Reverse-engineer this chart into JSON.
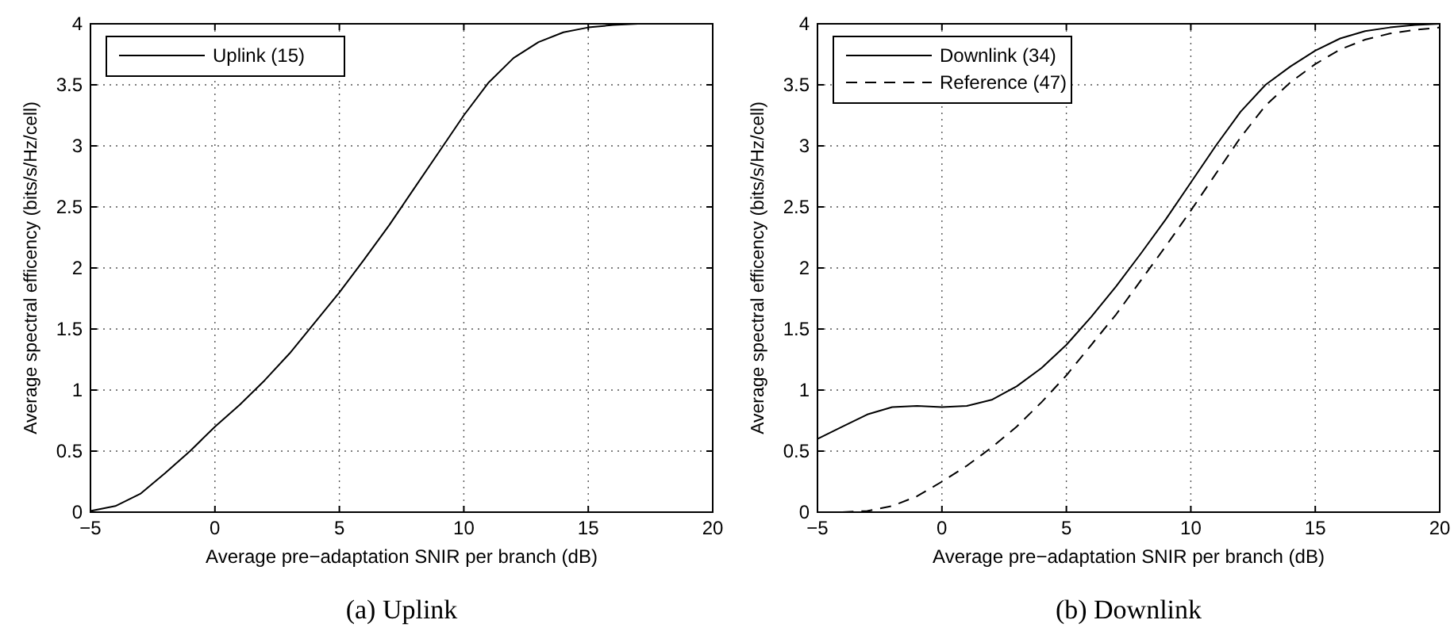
{
  "chart_data": [
    {
      "type": "line",
      "title": "(a) Uplink",
      "xlabel": "Average pre−adaptation SNIR per branch (dB)",
      "ylabel": "Average spectral efficency (bits/s/Hz/cell)",
      "x": [
        -5,
        -4,
        -3,
        -2,
        -1,
        0,
        1,
        2,
        3,
        4,
        5,
        6,
        7,
        8,
        9,
        10,
        11,
        12,
        13,
        14,
        15,
        16,
        17,
        18,
        19,
        20
      ],
      "series": [
        {
          "name": "Uplink (15)",
          "color": "#000000",
          "line_style": "solid",
          "values": [
            0.01,
            0.05,
            0.15,
            0.32,
            0.5,
            0.7,
            0.88,
            1.08,
            1.3,
            1.55,
            1.8,
            2.07,
            2.35,
            2.65,
            2.95,
            3.25,
            3.52,
            3.72,
            3.85,
            3.93,
            3.97,
            3.99,
            4.0,
            4.0,
            4.0,
            4.0
          ]
        }
      ],
      "xlim": [
        -5,
        20
      ],
      "xticks": [
        {
          "value": -5,
          "label": "−5"
        },
        0,
        5,
        10,
        15,
        20
      ],
      "ylim": [
        0,
        4
      ],
      "yticks": [
        0,
        0.5,
        1,
        1.5,
        2,
        2.5,
        3,
        3.5,
        4
      ],
      "grid": true,
      "legend": "top left"
    },
    {
      "type": "line",
      "title": "(b) Downlink",
      "xlabel": "Average pre−adaptation SNIR per branch (dB)",
      "ylabel": "Average spectral efficency (bits/s/Hz/cell)",
      "x": [
        -5,
        -4,
        -3,
        -2,
        -1,
        0,
        1,
        2,
        3,
        4,
        5,
        6,
        7,
        8,
        9,
        10,
        11,
        12,
        13,
        14,
        15,
        16,
        17,
        18,
        19,
        20
      ],
      "series": [
        {
          "name": "Downlink (34)",
          "color": "#000000",
          "line_style": "solid",
          "values": [
            0.6,
            0.7,
            0.8,
            0.86,
            0.87,
            0.86,
            0.87,
            0.92,
            1.03,
            1.18,
            1.37,
            1.6,
            1.85,
            2.12,
            2.4,
            2.7,
            3.0,
            3.28,
            3.5,
            3.65,
            3.78,
            3.88,
            3.94,
            3.97,
            3.99,
            4.0
          ]
        },
        {
          "name": "Reference (47)",
          "color": "#000000",
          "line_style": "dashed",
          "x": [
            -4,
            -3,
            -2,
            -1,
            0,
            1,
            2,
            3,
            4,
            5,
            6,
            7,
            8,
            9,
            10,
            11,
            12,
            13,
            14,
            15,
            16,
            17,
            18,
            19,
            20
          ],
          "values": [
            0.0,
            0.01,
            0.05,
            0.13,
            0.25,
            0.38,
            0.53,
            0.7,
            0.9,
            1.12,
            1.37,
            1.62,
            1.9,
            2.18,
            2.47,
            2.77,
            3.07,
            3.33,
            3.52,
            3.67,
            3.79,
            3.87,
            3.92,
            3.95,
            3.97
          ]
        }
      ],
      "xlim": [
        -5,
        20
      ],
      "xticks": [
        {
          "value": -5,
          "label": "−5"
        },
        0,
        5,
        10,
        15,
        20
      ],
      "ylim": [
        0,
        4
      ],
      "yticks": [
        0,
        0.5,
        1,
        1.5,
        2,
        2.5,
        3,
        3.5,
        4
      ],
      "grid": true,
      "legend": "top left"
    }
  ]
}
